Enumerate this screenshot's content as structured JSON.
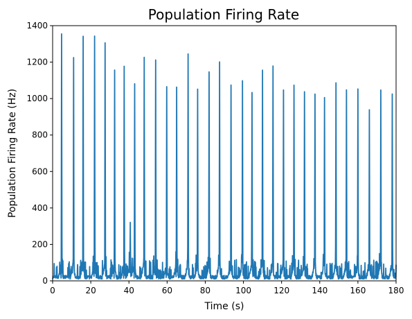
{
  "chart_data": {
    "type": "line",
    "title": "Population Firing Rate",
    "xlabel": "Time (s)",
    "ylabel": "Population Firing Rate (Hz)",
    "xlim": [
      0,
      180
    ],
    "ylim": [
      0,
      1400
    ],
    "xticks": [
      0,
      20,
      40,
      60,
      80,
      100,
      120,
      140,
      160,
      180
    ],
    "yticks": [
      0,
      200,
      400,
      600,
      800,
      1000,
      1200,
      1400
    ],
    "grid": false,
    "line_color": "#1f77b4",
    "bursts": [
      {
        "t": 4.7,
        "peak": 1340
      },
      {
        "t": 11.0,
        "peak": 1205
      },
      {
        "t": 16.0,
        "peak": 1330
      },
      {
        "t": 22.0,
        "peak": 1315
      },
      {
        "t": 27.5,
        "peak": 1285
      },
      {
        "t": 32.5,
        "peak": 1135
      },
      {
        "t": 37.5,
        "peak": 1155
      },
      {
        "t": 40.7,
        "peak": 310
      },
      {
        "t": 43.0,
        "peak": 1070
      },
      {
        "t": 48.0,
        "peak": 1205
      },
      {
        "t": 54.0,
        "peak": 1185
      },
      {
        "t": 59.8,
        "peak": 1055
      },
      {
        "t": 65.0,
        "peak": 1050
      },
      {
        "t": 71.0,
        "peak": 1220
      },
      {
        "t": 76.0,
        "peak": 1025
      },
      {
        "t": 82.0,
        "peak": 1120
      },
      {
        "t": 87.5,
        "peak": 1150
      },
      {
        "t": 93.5,
        "peak": 1045
      },
      {
        "t": 99.5,
        "peak": 1080
      },
      {
        "t": 104.5,
        "peak": 1020
      },
      {
        "t": 110.0,
        "peak": 1135
      },
      {
        "t": 115.5,
        "peak": 1150
      },
      {
        "t": 121.0,
        "peak": 1035
      },
      {
        "t": 126.5,
        "peak": 1060
      },
      {
        "t": 132.0,
        "peak": 1020
      },
      {
        "t": 137.5,
        "peak": 1005
      },
      {
        "t": 142.5,
        "peak": 985
      },
      {
        "t": 148.5,
        "peak": 1015
      },
      {
        "t": 154.0,
        "peak": 1030
      },
      {
        "t": 160.0,
        "peak": 1035
      },
      {
        "t": 166.0,
        "peak": 920
      },
      {
        "t": 172.0,
        "peak": 1030
      },
      {
        "t": 178.0,
        "peak": 1010
      }
    ],
    "baseline_range_hz": [
      10,
      200
    ]
  }
}
